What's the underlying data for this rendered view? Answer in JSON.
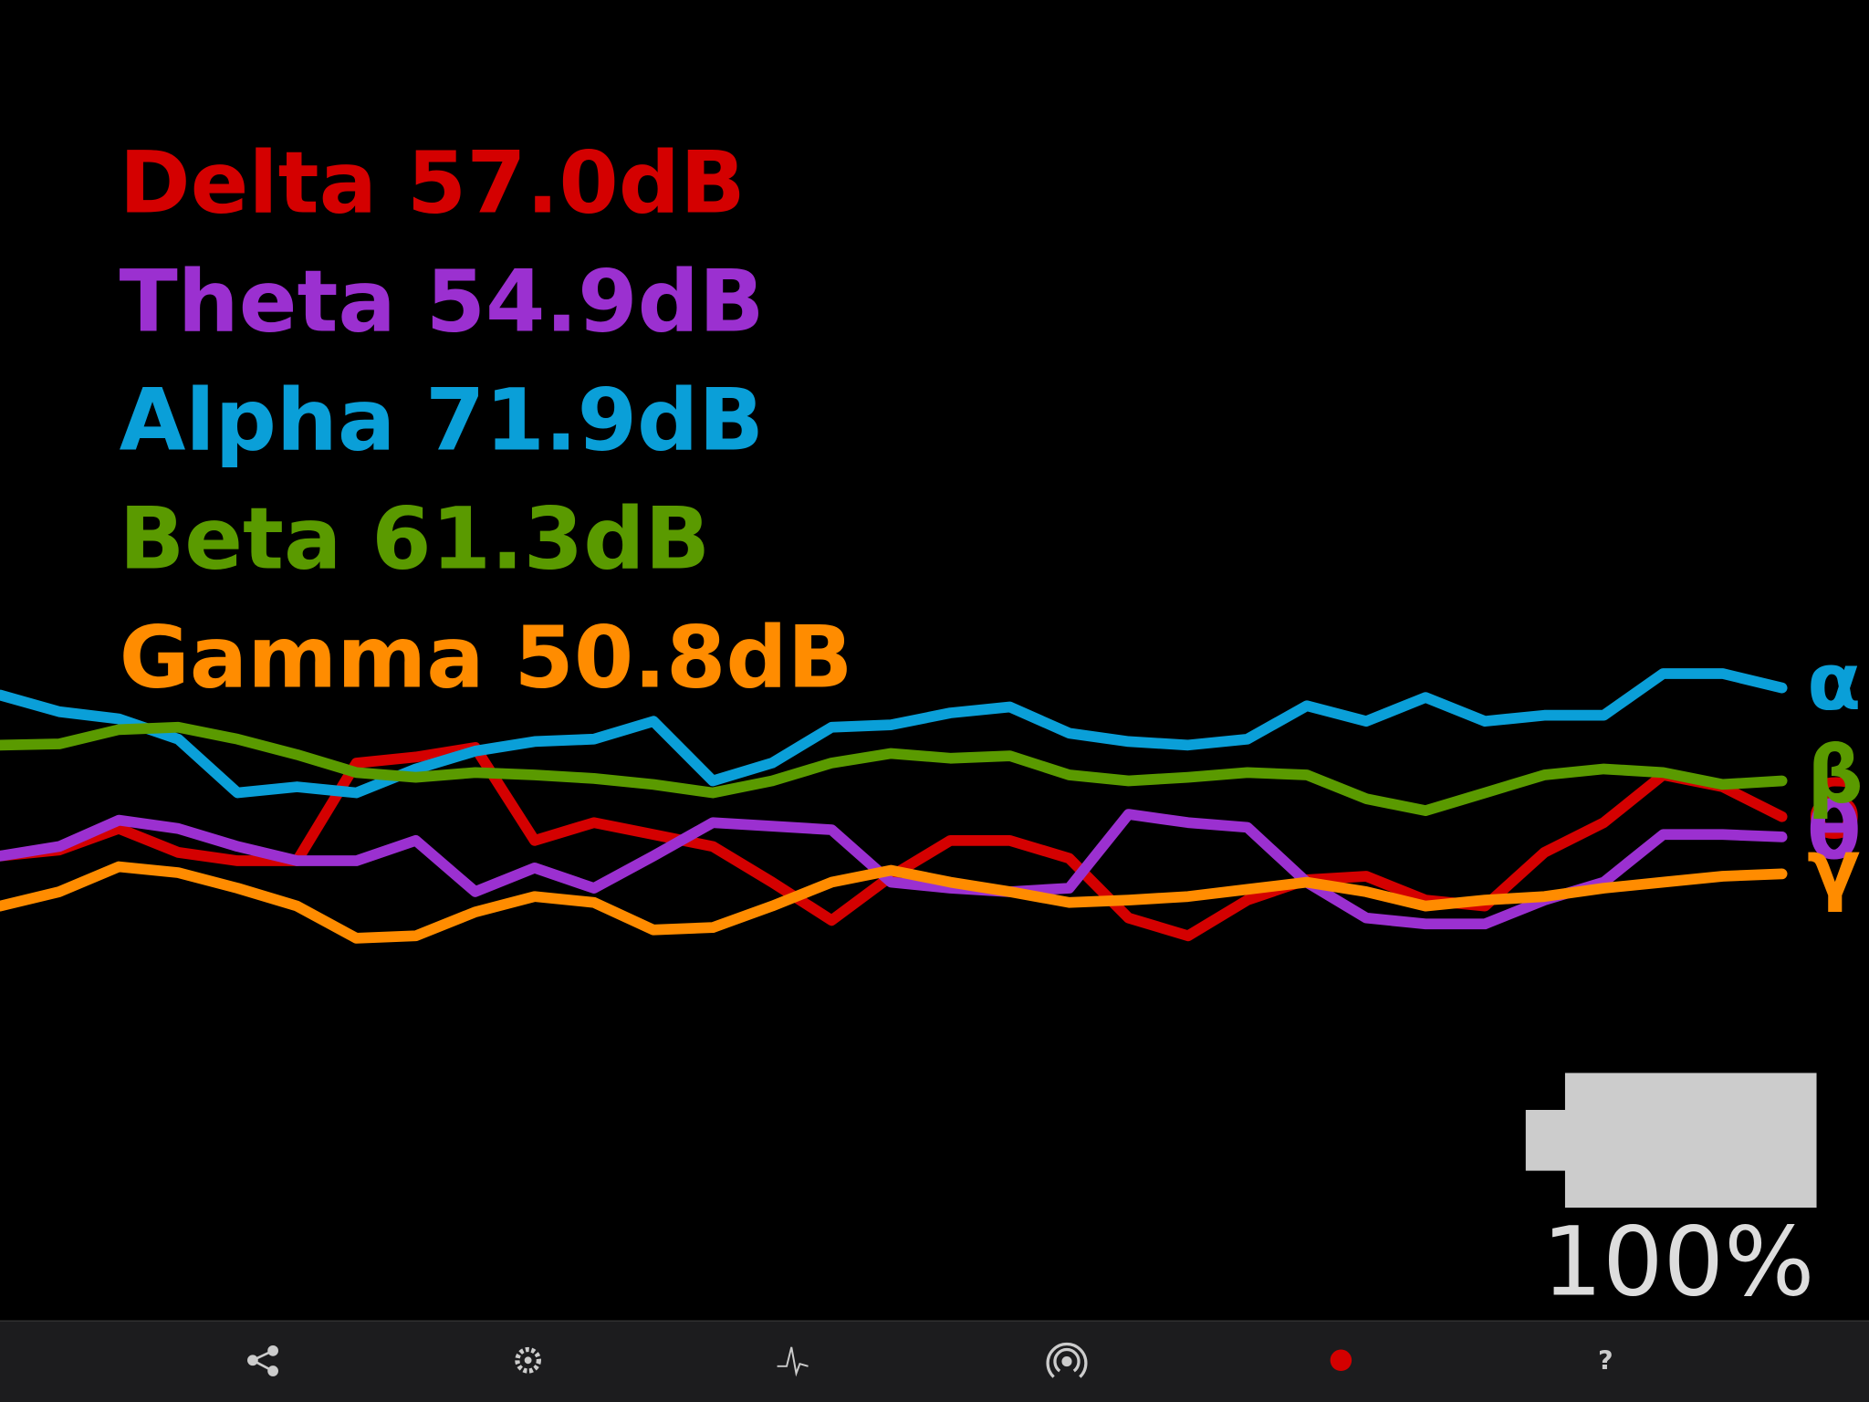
{
  "legend": [
    "Delta 57.0dB",
    "Theta 54.9dB",
    "Alpha 71.9dB",
    "Beta 61.3dB",
    "Gamma 50.8dB"
  ],
  "chart_data": {
    "type": "line",
    "ylim": [
      0,
      280
    ],
    "series": [
      {
        "name": "δ",
        "color": "#d40000",
        "values": [
          102,
          107,
          125,
          105,
          98,
          98,
          180,
          185,
          193,
          115,
          130,
          120,
          110,
          80,
          48,
          85,
          115,
          115,
          100,
          50,
          35,
          65,
          82,
          85,
          65,
          60,
          105,
          130,
          170,
          160,
          135
        ]
      },
      {
        "name": "θ",
        "color": "#9b30d0",
        "values": [
          102,
          110,
          132,
          125,
          110,
          98,
          98,
          115,
          72,
          92,
          75,
          102,
          130,
          127,
          124,
          80,
          75,
          72,
          75,
          137,
          130,
          126,
          80,
          50,
          45,
          45,
          65,
          80,
          120,
          120,
          118
        ]
      },
      {
        "name": "α",
        "color": "#0a9fd8",
        "values": [
          237,
          223,
          217,
          200,
          155,
          160,
          155,
          175,
          190,
          198,
          200,
          215,
          165,
          180,
          210,
          212,
          222,
          227,
          205,
          198,
          195,
          200,
          228,
          215,
          235,
          215,
          220,
          220,
          255,
          255,
          243
        ]
      },
      {
        "name": "β",
        "color": "#5a9a00",
        "values": [
          195,
          196,
          208,
          210,
          200,
          187,
          172,
          168,
          172,
          170,
          167,
          162,
          155,
          165,
          180,
          188,
          184,
          186,
          170,
          165,
          168,
          172,
          170,
          150,
          140,
          155,
          170,
          175,
          172,
          162,
          165
        ]
      },
      {
        "name": "γ",
        "color": "#ff8c00",
        "values": [
          60,
          72,
          93,
          88,
          75,
          60,
          33,
          35,
          55,
          68,
          63,
          40,
          42,
          60,
          80,
          90,
          80,
          72,
          63,
          65,
          68,
          74,
          80,
          72,
          60,
          65,
          68,
          75,
          80,
          85,
          87
        ]
      }
    ]
  },
  "battery": {
    "label": "100%"
  },
  "toolbar": {
    "help": "?"
  }
}
